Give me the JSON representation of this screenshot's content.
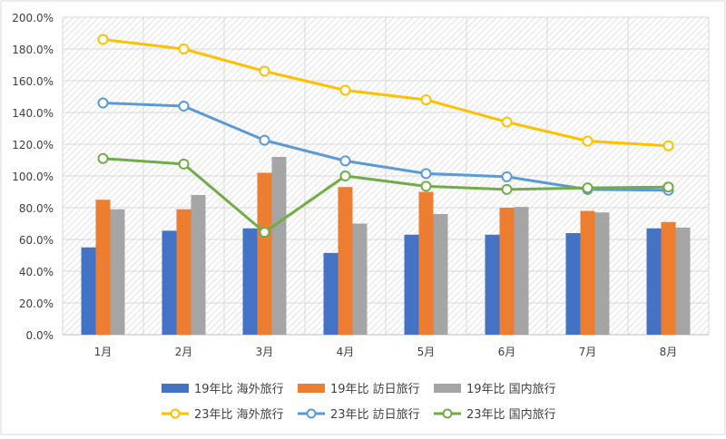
{
  "chart_data": {
    "type": "bar",
    "categories": [
      "1月",
      "2月",
      "3月",
      "4月",
      "5月",
      "6月",
      "7月",
      "8月"
    ],
    "ylim": [
      0,
      200
    ],
    "yticks": [
      "0.0%",
      "20.0%",
      "40.0%",
      "60.0%",
      "80.0%",
      "100.0%",
      "120.0%",
      "140.0%",
      "160.0%",
      "180.0%",
      "200.0%"
    ],
    "grid": true,
    "legend_position": "bottom",
    "bar_series": [
      {
        "name": "19年比 海外旅行",
        "color": "#4472C4",
        "values": [
          55,
          65.5,
          67,
          51.5,
          63,
          63,
          64,
          67
        ]
      },
      {
        "name": "19年比 訪日旅行",
        "color": "#ED7D31",
        "values": [
          85,
          79,
          102,
          93,
          90,
          80,
          78,
          71
        ]
      },
      {
        "name": "19年比 国内旅行",
        "color": "#A5A5A5",
        "values": [
          79,
          88,
          112,
          70,
          76,
          80.5,
          77,
          67.5
        ]
      }
    ],
    "line_series": [
      {
        "name": "23年比 海外旅行",
        "color": "#FFC000",
        "values": [
          186,
          180,
          166,
          154,
          148,
          134,
          122,
          119
        ]
      },
      {
        "name": "23年比 訪日旅行",
        "color": "#5B9BD5",
        "values": [
          146,
          144,
          122.5,
          109.5,
          101.5,
          99.5,
          91.5,
          91
        ]
      },
      {
        "name": "23年比 国内旅行",
        "color": "#70AD47",
        "values": [
          111,
          107.5,
          64.5,
          100,
          93.5,
          91.5,
          92.5,
          93
        ]
      }
    ]
  }
}
